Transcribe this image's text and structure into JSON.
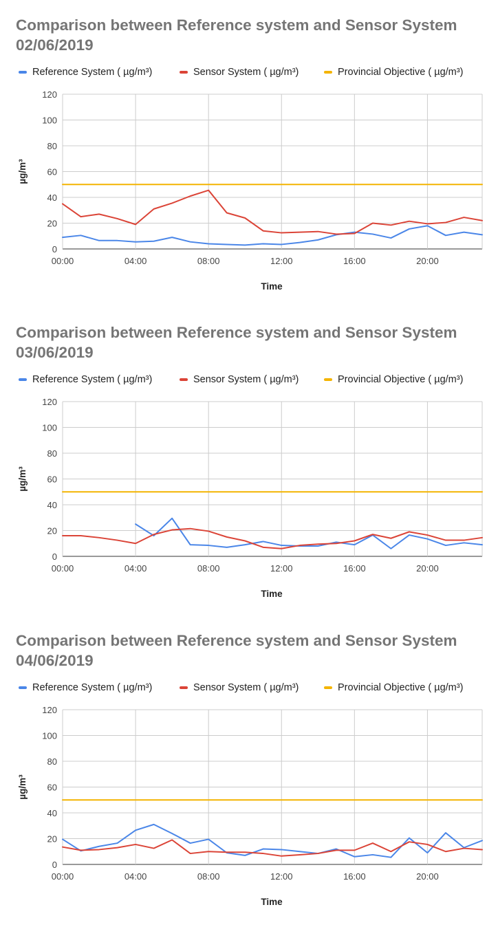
{
  "chart_data": [
    {
      "type": "line",
      "title_line1": "Comparison between  Reference system and Sensor System",
      "title_line2": "02/06/2019",
      "xlabel": "Time",
      "ylabel": "µg/m³",
      "ylim": [
        0,
        120
      ],
      "yticks": [
        "0",
        "20",
        "40",
        "60",
        "80",
        "100",
        "120"
      ],
      "xticks": [
        "00:00",
        "04:00",
        "08:00",
        "12:00",
        "16:00",
        "20:00"
      ],
      "grid": true,
      "legend_position": "top",
      "x": [
        "00:00",
        "01:00",
        "02:00",
        "03:00",
        "04:00",
        "05:00",
        "06:00",
        "07:00",
        "08:00",
        "09:00",
        "10:00",
        "11:00",
        "12:00",
        "13:00",
        "14:00",
        "15:00",
        "16:00",
        "17:00",
        "18:00",
        "19:00",
        "20:00",
        "21:00",
        "22:00",
        "23:00"
      ],
      "series": [
        {
          "name": "Reference System ( µg/m³)",
          "color": "#4a86e8",
          "values": [
            9,
            10.5,
            6.5,
            6.5,
            5.5,
            6,
            9,
            5.5,
            4,
            3.5,
            3,
            4,
            3.5,
            5,
            7,
            11,
            13,
            11.5,
            8.5,
            15.5,
            18,
            10.5,
            13,
            11
          ]
        },
        {
          "name": "Sensor System ( µg/m³)",
          "color": "#db4437",
          "values": [
            35,
            25,
            27,
            23.5,
            19,
            31,
            35.5,
            41,
            45.5,
            28,
            24,
            14,
            12.5,
            13,
            13.5,
            11.5,
            12,
            20,
            18.5,
            21.5,
            19.5,
            20.5,
            24.5,
            22
          ]
        },
        {
          "name": "Provincial Objective ( µg/m³)",
          "color": "#f4b400",
          "values": [
            50,
            50,
            50,
            50,
            50,
            50,
            50,
            50,
            50,
            50,
            50,
            50,
            50,
            50,
            50,
            50,
            50,
            50,
            50,
            50,
            50,
            50,
            50,
            50
          ]
        }
      ]
    },
    {
      "type": "line",
      "title_line1": "Comparison between  Reference system and Sensor System",
      "title_line2": "03/06/2019",
      "xlabel": "Time",
      "ylabel": "µg/m³",
      "ylim": [
        0,
        120
      ],
      "yticks": [
        "0",
        "20",
        "40",
        "60",
        "80",
        "100",
        "120"
      ],
      "xticks": [
        "00:00",
        "04:00",
        "08:00",
        "12:00",
        "16:00",
        "20:00"
      ],
      "grid": true,
      "legend_position": "top",
      "x": [
        "00:00",
        "01:00",
        "02:00",
        "03:00",
        "04:00",
        "05:00",
        "06:00",
        "07:00",
        "08:00",
        "09:00",
        "10:00",
        "11:00",
        "12:00",
        "13:00",
        "14:00",
        "15:00",
        "16:00",
        "17:00",
        "18:00",
        "19:00",
        "20:00",
        "21:00",
        "22:00",
        "23:00"
      ],
      "series": [
        {
          "name": "Reference System ( µg/m³)",
          "color": "#4a86e8",
          "values": [
            null,
            null,
            null,
            null,
            25,
            16,
            29.5,
            9,
            8.5,
            7,
            9,
            11.5,
            8.5,
            8,
            8,
            11,
            9,
            16.5,
            6,
            16.5,
            13.5,
            8.5,
            10.5,
            9
          ]
        },
        {
          "name": "Sensor System ( µg/m³)",
          "color": "#db4437",
          "values": [
            16,
            16,
            14.5,
            12.5,
            10,
            17,
            20.5,
            21.5,
            19.5,
            15,
            12,
            7,
            6,
            8.5,
            9.5,
            10,
            12,
            17,
            14,
            19,
            16.5,
            12.5,
            12.5,
            14.5
          ]
        },
        {
          "name": "Provincial Objective ( µg/m³)",
          "color": "#f4b400",
          "values": [
            50,
            50,
            50,
            50,
            50,
            50,
            50,
            50,
            50,
            50,
            50,
            50,
            50,
            50,
            50,
            50,
            50,
            50,
            50,
            50,
            50,
            50,
            50,
            50
          ]
        }
      ]
    },
    {
      "type": "line",
      "title_line1": "Comparison between  Reference system and Sensor System",
      "title_line2": "04/06/2019",
      "xlabel": "Time",
      "ylabel": "µg/m³",
      "ylim": [
        0,
        120
      ],
      "yticks": [
        "0",
        "20",
        "40",
        "60",
        "80",
        "100",
        "120"
      ],
      "xticks": [
        "00:00",
        "04:00",
        "08:00",
        "12:00",
        "16:00",
        "20:00"
      ],
      "grid": true,
      "legend_position": "top",
      "x": [
        "00:00",
        "01:00",
        "02:00",
        "03:00",
        "04:00",
        "05:00",
        "06:00",
        "07:00",
        "08:00",
        "09:00",
        "10:00",
        "11:00",
        "12:00",
        "13:00",
        "14:00",
        "15:00",
        "16:00",
        "17:00",
        "18:00",
        "19:00",
        "20:00",
        "21:00",
        "22:00",
        "23:00"
      ],
      "series": [
        {
          "name": "Reference System ( µg/m³)",
          "color": "#4a86e8",
          "values": [
            19.5,
            10.5,
            14,
            16.5,
            26.5,
            31,
            24,
            16.5,
            19.5,
            9,
            7,
            12,
            11.5,
            10,
            8.5,
            12,
            6,
            7.5,
            5.5,
            20.5,
            9,
            24.5,
            13,
            18.5
          ]
        },
        {
          "name": "Sensor System ( µg/m³)",
          "color": "#db4437",
          "values": [
            13.5,
            11,
            11.5,
            13,
            15.5,
            12.5,
            19,
            8.5,
            10,
            9.5,
            9.5,
            8.5,
            6.5,
            7.5,
            8.5,
            11,
            11,
            16.5,
            10,
            17.5,
            15.5,
            10,
            12.5,
            11.5
          ]
        },
        {
          "name": "Provincial Objective ( µg/m³)",
          "color": "#f4b400",
          "values": [
            50,
            50,
            50,
            50,
            50,
            50,
            50,
            50,
            50,
            50,
            50,
            50,
            50,
            50,
            50,
            50,
            50,
            50,
            50,
            50,
            50,
            50,
            50,
            50
          ]
        }
      ]
    }
  ]
}
